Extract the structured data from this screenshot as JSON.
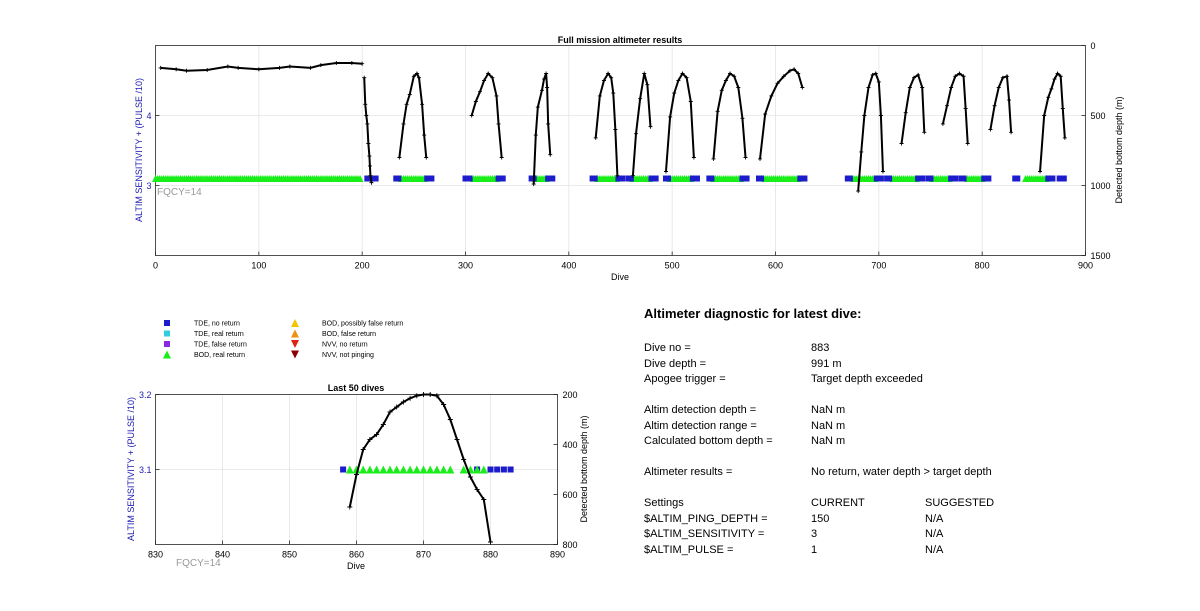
{
  "chart_data": [
    {
      "type": "scatter",
      "title": "Full mission altimeter results",
      "xlabel": "Dive",
      "ylabel_left": "ALTIM SENSITIVITY + (PULSE /10)",
      "ylabel_right": "Detected bottom depth (m)",
      "xlim": [
        0,
        900
      ],
      "xticks": [
        0,
        100,
        200,
        300,
        400,
        500,
        600,
        700,
        800,
        900
      ],
      "ylim_left": [
        2.0,
        5.0
      ],
      "yticks_left": [
        3,
        4
      ],
      "ylim_right": [
        0,
        1500
      ],
      "right_axis_reversed": true,
      "yticks_right": [
        0,
        500,
        1000,
        1500
      ],
      "grid": true,
      "annotation": "FQCY=14",
      "sensitivity_value": 3.1,
      "bod_real_return_ranges": [
        [
          0,
          198
        ],
        [
          238,
          260
        ],
        [
          308,
          330
        ],
        [
          368,
          378
        ],
        [
          428,
          446
        ],
        [
          462,
          478
        ],
        [
          498,
          518
        ],
        [
          540,
          566
        ],
        [
          590,
          622
        ],
        [
          676,
          696
        ],
        [
          714,
          736
        ],
        [
          752,
          768
        ],
        [
          786,
          800
        ],
        [
          842,
          862
        ]
      ],
      "tde_no_return_ranges": [
        [
          205,
          213
        ],
        [
          233,
          236
        ],
        [
          263,
          267
        ],
        [
          300,
          304
        ],
        [
          332,
          336
        ],
        [
          364,
          366
        ],
        [
          380,
          384
        ],
        [
          423,
          426
        ],
        [
          448,
          452
        ],
        [
          458,
          460
        ],
        [
          480,
          484
        ],
        [
          494,
          496
        ],
        [
          520,
          524
        ],
        [
          536,
          538
        ],
        [
          568,
          572
        ],
        [
          584,
          586
        ],
        [
          624,
          628
        ],
        [
          670,
          672
        ],
        [
          698,
          702
        ],
        [
          708,
          710
        ],
        [
          738,
          742
        ],
        [
          748,
          750
        ],
        [
          770,
          774
        ],
        [
          780,
          782
        ],
        [
          802,
          806
        ],
        [
          832,
          834
        ],
        [
          864,
          868
        ],
        [
          875,
          879
        ]
      ],
      "depth_series": [
        {
          "segment": "early",
          "x": [
            5,
            20,
            30,
            50,
            70,
            80,
            100,
            120,
            130,
            150,
            160,
            175,
            190,
            200
          ],
          "y": [
            160,
            170,
            180,
            175,
            150,
            160,
            170,
            160,
            150,
            160,
            140,
            125,
            125,
            130
          ]
        },
        {
          "segment": "drop",
          "x": [
            202,
            203,
            204,
            205,
            206,
            207,
            207.5,
            208,
            209
          ],
          "y": [
            230,
            420,
            500,
            560,
            700,
            790,
            860,
            930,
            980
          ]
        },
        {
          "segment": "dives",
          "x": [
            236,
            240,
            243,
            246,
            250,
            253,
            255,
            258,
            260,
            262
          ],
          "y": [
            800,
            560,
            420,
            350,
            220,
            200,
            230,
            420,
            640,
            800
          ]
        },
        {
          "segment": "dives",
          "x": [
            306,
            310,
            314,
            318,
            322,
            326,
            330,
            332,
            335
          ],
          "y": [
            500,
            400,
            330,
            250,
            200,
            230,
            360,
            560,
            800
          ]
        },
        {
          "segment": "dives",
          "x": [
            366,
            368,
            370,
            374,
            376,
            378,
            379,
            380,
            382
          ],
          "y": [
            990,
            640,
            440,
            320,
            240,
            200,
            300,
            560,
            780
          ]
        },
        {
          "segment": "dives",
          "x": [
            426,
            430,
            434,
            438,
            441,
            443,
            445,
            447
          ],
          "y": [
            660,
            360,
            250,
            200,
            230,
            340,
            600,
            930
          ]
        },
        {
          "segment": "dives",
          "x": [
            462,
            465,
            469,
            473,
            476,
            479
          ],
          "y": [
            930,
            630,
            380,
            200,
            280,
            580
          ]
        },
        {
          "segment": "dives",
          "x": [
            494,
            498,
            502,
            506,
            510,
            514,
            518,
            521
          ],
          "y": [
            900,
            510,
            340,
            250,
            200,
            230,
            400,
            800
          ]
        },
        {
          "segment": "dives",
          "x": [
            540,
            544,
            548,
            552,
            556,
            560,
            564,
            568,
            571
          ],
          "y": [
            810,
            470,
            320,
            250,
            200,
            220,
            300,
            520,
            800
          ]
        },
        {
          "segment": "dives",
          "x": [
            585,
            590,
            596,
            602,
            608,
            614,
            618,
            622,
            626
          ],
          "y": [
            810,
            490,
            360,
            270,
            220,
            180,
            170,
            200,
            300
          ]
        },
        {
          "segment": "dives",
          "x": [
            680,
            683,
            686,
            690,
            694,
            697,
            700,
            702,
            704
          ],
          "y": [
            1040,
            760,
            500,
            300,
            210,
            200,
            260,
            500,
            900
          ]
        },
        {
          "segment": "dives",
          "x": [
            722,
            726,
            730,
            734,
            738,
            742,
            744
          ],
          "y": [
            700,
            480,
            300,
            230,
            210,
            300,
            620
          ]
        },
        {
          "segment": "dives",
          "x": [
            762,
            766,
            770,
            774,
            778,
            782,
            784,
            786
          ],
          "y": [
            560,
            430,
            300,
            220,
            200,
            220,
            450,
            700
          ]
        },
        {
          "segment": "dives",
          "x": [
            808,
            812,
            816,
            820,
            824,
            826,
            828
          ],
          "y": [
            600,
            430,
            300,
            230,
            220,
            390,
            620
          ]
        },
        {
          "segment": "dives",
          "x": [
            856,
            860,
            864,
            867,
            870,
            873,
            876,
            878,
            880
          ],
          "y": [
            900,
            500,
            370,
            310,
            240,
            200,
            220,
            450,
            660
          ]
        }
      ]
    },
    {
      "type": "scatter",
      "title": "Last 50 dives",
      "xlabel": "Dive",
      "ylabel_left": "ALTIM SENSITIVITY + (PULSE /10)",
      "ylabel_right": "Detected bottom depth (m)",
      "xlim": [
        830,
        890
      ],
      "xticks": [
        830,
        840,
        850,
        860,
        870,
        880,
        890
      ],
      "ylim_left": [
        3.0,
        3.2
      ],
      "yticks_left": [
        3.1,
        3.2
      ],
      "ylim_right": [
        200,
        800
      ],
      "right_axis_reversed": true,
      "yticks_right": [
        200,
        400,
        600,
        800
      ],
      "grid": true,
      "annotation": "FQCY=14",
      "sensitivity_value": 3.1,
      "tde_no_return_x": [
        858,
        878,
        880,
        881,
        882,
        883
      ],
      "bod_real_return_x": [
        859,
        860,
        861,
        862,
        863,
        864,
        865,
        866,
        867,
        868,
        869,
        870,
        871,
        872,
        873,
        874,
        876,
        877,
        878,
        879
      ],
      "depth_x": [
        859,
        860,
        861,
        862,
        863,
        864,
        865,
        866,
        867,
        868,
        869,
        870,
        871,
        872,
        873,
        874,
        875,
        876,
        877,
        878,
        879,
        880
      ],
      "depth_y": [
        650,
        520,
        420,
        380,
        360,
        320,
        270,
        250,
        230,
        215,
        205,
        200,
        200,
        205,
        240,
        300,
        380,
        460,
        530,
        580,
        620,
        790
      ]
    }
  ],
  "legend": {
    "items": [
      {
        "label": "TDE, no return",
        "marker": "square",
        "color": "#1c1ccd"
      },
      {
        "label": "TDE, real return",
        "marker": "square",
        "color": "#33ccdd"
      },
      {
        "label": "TDE, false return",
        "marker": "square",
        "color": "#8a2be2"
      },
      {
        "label": "BOD, real return",
        "marker": "triangle-up",
        "color": "#1aee1a"
      },
      {
        "label": "BOD, possibly false return",
        "marker": "triangle-up",
        "color": "#f5c400"
      },
      {
        "label": "BOD, false return",
        "marker": "triangle-up",
        "color": "#ee9010"
      },
      {
        "label": "NVV, no return",
        "marker": "triangle-down",
        "color": "#dd2211"
      },
      {
        "label": "NVV, not pinging",
        "marker": "triangle-down",
        "color": "#8b0000"
      }
    ]
  },
  "diagnostic": {
    "title": "Altimeter diagnostic for latest dive:",
    "dive_no_label": "Dive no =",
    "dive_no_value": "883",
    "dive_depth_label": "Dive depth =",
    "dive_depth_value": "991 m",
    "apogee_label": "Apogee trigger =",
    "apogee_value": "Target depth exceeded",
    "altim_det_depth_label": "Altim detection depth =",
    "altim_det_depth_value": "NaN m",
    "altim_det_range_label": "Altim detection range =",
    "altim_det_range_value": "NaN m",
    "calc_bottom_label": "Calculated bottom depth =",
    "calc_bottom_value": "NaN m",
    "results_label": "Altimeter results =",
    "results_value": "No return, water depth > target depth",
    "settings_label": "Settings",
    "current_header": "CURRENT",
    "suggested_header": "SUGGESTED",
    "ping_depth_label": "$ALTIM_PING_DEPTH =",
    "ping_depth_current": "150",
    "ping_depth_suggested": "N/A",
    "sensitivity_label": "$ALTIM_SENSITIVITY =",
    "sensitivity_current": "3",
    "sensitivity_suggested": "N/A",
    "pulse_label": "$ALTIM_PULSE =",
    "pulse_current": "1",
    "pulse_suggested": "N/A"
  },
  "colors": {
    "tde_no_return": "#1c1ccd",
    "bod_real_return": "#1aee1a",
    "depth_line": "#000000",
    "left_axis_label": "#1c1cb0",
    "annotation": "#999999",
    "grid": "#e4e4e4"
  }
}
